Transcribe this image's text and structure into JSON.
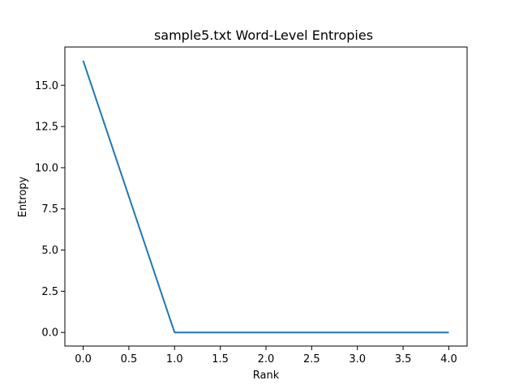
{
  "chart_data": {
    "type": "line",
    "title": "sample5.txt Word-Level Entropies",
    "xlabel": "Rank",
    "ylabel": "Entropy",
    "x": [
      0,
      1,
      2,
      3,
      4
    ],
    "series": [
      {
        "values": [
          16.5,
          0.0,
          0.0,
          0.0,
          0.0
        ],
        "color": "#1f77b4"
      }
    ],
    "xlim": [
      -0.2,
      4.2
    ],
    "ylim": [
      -0.825,
      17.325
    ],
    "xticks": [
      0.0,
      0.5,
      1.0,
      1.5,
      2.0,
      2.5,
      3.0,
      3.5,
      4.0
    ],
    "xtick_labels": [
      "0.0",
      "0.5",
      "1.0",
      "1.5",
      "2.0",
      "2.5",
      "3.0",
      "3.5",
      "4.0"
    ],
    "yticks": [
      0.0,
      2.5,
      5.0,
      7.5,
      10.0,
      12.5,
      15.0
    ],
    "ytick_labels": [
      "0.0",
      "2.5",
      "5.0",
      "7.5",
      "10.0",
      "12.5",
      "15.0"
    ],
    "grid": false,
    "legend": "none"
  }
}
